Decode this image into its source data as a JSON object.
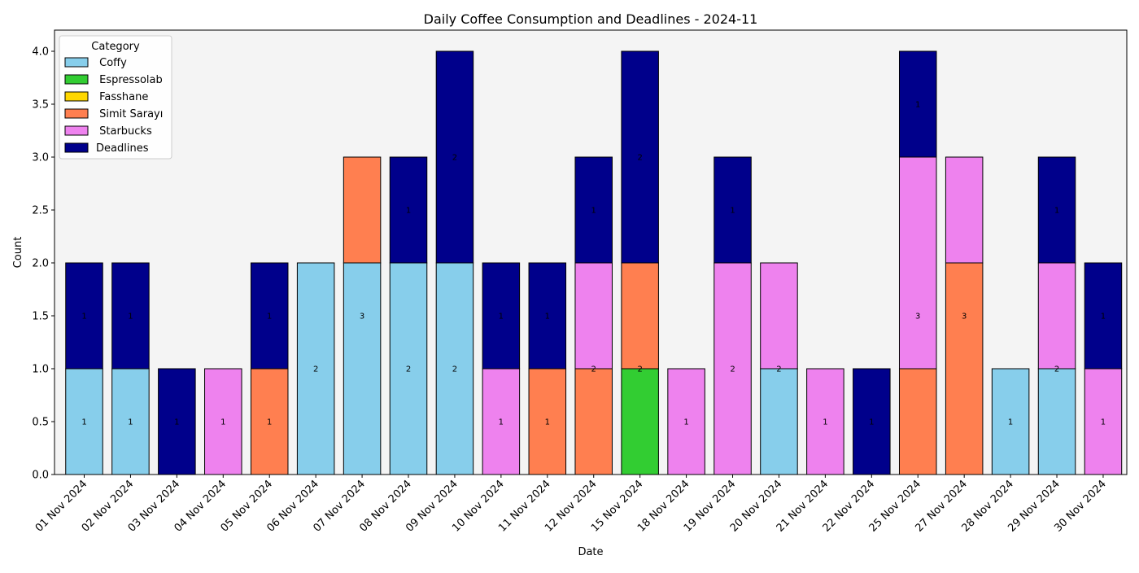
{
  "chart_data": {
    "type": "bar",
    "stacked": true,
    "title": "Daily Coffee Consumption and Deadlines - 2024-11",
    "xlabel": "Date",
    "ylabel": "Count",
    "ylim": [
      0,
      4.2
    ],
    "yticks": [
      0.0,
      0.5,
      1.0,
      1.5,
      2.0,
      2.5,
      3.0,
      3.5,
      4.0
    ],
    "ytick_labels": [
      "0.0",
      "0.5",
      "1.0",
      "1.5",
      "2.0",
      "2.5",
      "3.0",
      "3.5",
      "4.0"
    ],
    "grid": false,
    "legend": {
      "title": "Category",
      "placement": "top-left"
    },
    "categories": [
      "01 Nov 2024",
      "02 Nov 2024",
      "03 Nov 2024",
      "04 Nov 2024",
      "05 Nov 2024",
      "06 Nov 2024",
      "07 Nov 2024",
      "08 Nov 2024",
      "09 Nov 2024",
      "10 Nov 2024",
      "11 Nov 2024",
      "12 Nov 2024",
      "15 Nov 2024",
      "18 Nov 2024",
      "19 Nov 2024",
      "20 Nov 2024",
      "21 Nov 2024",
      "22 Nov 2024",
      "25 Nov 2024",
      "27 Nov 2024",
      "28 Nov 2024",
      "29 Nov 2024",
      "30 Nov 2024"
    ],
    "series": [
      {
        "name": " Coffy",
        "color": "#87ceeb",
        "values": [
          1,
          1,
          0,
          0,
          0,
          2,
          2,
          2,
          2,
          0,
          0,
          0,
          0,
          0,
          0,
          1,
          0,
          0,
          0,
          0,
          1,
          1,
          0
        ]
      },
      {
        "name": " Espressolab",
        "color": "#32cd32",
        "values": [
          0,
          0,
          0,
          0,
          0,
          0,
          0,
          0,
          0,
          0,
          0,
          0,
          1,
          0,
          0,
          0,
          0,
          0,
          0,
          0,
          0,
          0,
          0
        ]
      },
      {
        "name": " Fasshane",
        "color": "#ffd700",
        "values": [
          0,
          0,
          0,
          0,
          0,
          0,
          0,
          0,
          0,
          0,
          0,
          0,
          0,
          0,
          0,
          0,
          0,
          0,
          0,
          0,
          0,
          0,
          0
        ]
      },
      {
        "name": " Simit Sarayı",
        "color": "#ff7f50",
        "values": [
          0,
          0,
          0,
          0,
          1,
          0,
          1,
          0,
          0,
          0,
          1,
          1,
          1,
          0,
          0,
          0,
          0,
          0,
          1,
          2,
          0,
          0,
          0
        ]
      },
      {
        "name": " Starbucks",
        "color": "#ee82ee",
        "values": [
          0,
          0,
          0,
          1,
          0,
          0,
          0,
          0,
          0,
          1,
          0,
          1,
          0,
          1,
          2,
          1,
          1,
          0,
          2,
          1,
          0,
          1,
          1
        ]
      },
      {
        "name": "Deadlines",
        "color": "#00008b",
        "values": [
          1,
          1,
          1,
          0,
          1,
          0,
          0,
          1,
          2,
          1,
          1,
          1,
          2,
          0,
          1,
          0,
          0,
          1,
          1,
          0,
          0,
          1,
          1
        ]
      }
    ],
    "bar_labels": [
      {
        "text": "1",
        "x": "01 Nov 2024",
        "y": 0.5
      },
      {
        "text": "1",
        "x": "01 Nov 2024",
        "y": 1.5
      },
      {
        "text": "1",
        "x": "02 Nov 2024",
        "y": 0.5
      },
      {
        "text": "1",
        "x": "02 Nov 2024",
        "y": 1.5
      },
      {
        "text": "1",
        "x": "03 Nov 2024",
        "y": 0.5
      },
      {
        "text": "1",
        "x": "04 Nov 2024",
        "y": 0.5
      },
      {
        "text": "1",
        "x": "05 Nov 2024",
        "y": 0.5
      },
      {
        "text": "1",
        "x": "05 Nov 2024",
        "y": 1.5
      },
      {
        "text": "2",
        "x": "06 Nov 2024",
        "y": 1.0
      },
      {
        "text": "3",
        "x": "07 Nov 2024",
        "y": 1.5
      },
      {
        "text": "2",
        "x": "08 Nov 2024",
        "y": 1.0
      },
      {
        "text": "1",
        "x": "08 Nov 2024",
        "y": 2.5
      },
      {
        "text": "2",
        "x": "09 Nov 2024",
        "y": 1.0
      },
      {
        "text": "2",
        "x": "09 Nov 2024",
        "y": 3.0
      },
      {
        "text": "1",
        "x": "10 Nov 2024",
        "y": 0.5
      },
      {
        "text": "1",
        "x": "10 Nov 2024",
        "y": 1.5
      },
      {
        "text": "1",
        "x": "11 Nov 2024",
        "y": 0.5
      },
      {
        "text": "1",
        "x": "11 Nov 2024",
        "y": 1.5
      },
      {
        "text": "2",
        "x": "12 Nov 2024",
        "y": 1.0
      },
      {
        "text": "1",
        "x": "12 Nov 2024",
        "y": 2.5
      },
      {
        "text": "2",
        "x": "15 Nov 2024",
        "y": 1.0
      },
      {
        "text": "2",
        "x": "15 Nov 2024",
        "y": 3.0
      },
      {
        "text": "1",
        "x": "18 Nov 2024",
        "y": 0.5
      },
      {
        "text": "2",
        "x": "19 Nov 2024",
        "y": 1.0
      },
      {
        "text": "1",
        "x": "19 Nov 2024",
        "y": 2.5
      },
      {
        "text": "2",
        "x": "20 Nov 2024",
        "y": 1.0
      },
      {
        "text": "1",
        "x": "21 Nov 2024",
        "y": 0.5
      },
      {
        "text": "1",
        "x": "22 Nov 2024",
        "y": 0.5
      },
      {
        "text": "3",
        "x": "25 Nov 2024",
        "y": 1.5
      },
      {
        "text": "1",
        "x": "25 Nov 2024",
        "y": 3.5
      },
      {
        "text": "3",
        "x": "27 Nov 2024",
        "y": 1.5
      },
      {
        "text": "1",
        "x": "28 Nov 2024",
        "y": 0.5
      },
      {
        "text": "2",
        "x": "29 Nov 2024",
        "y": 1.0
      },
      {
        "text": "1",
        "x": "29 Nov 2024",
        "y": 2.5
      },
      {
        "text": "1",
        "x": "30 Nov 2024",
        "y": 0.5
      },
      {
        "text": "1",
        "x": "30 Nov 2024",
        "y": 1.5
      }
    ],
    "plot_background": "#f4f4f4"
  }
}
